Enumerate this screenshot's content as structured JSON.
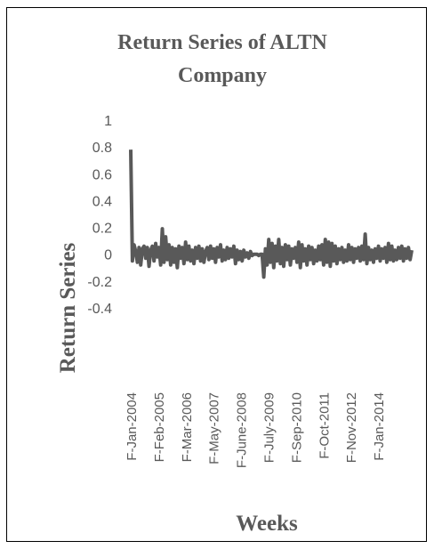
{
  "chart_data": {
    "type": "line",
    "title": "Return Series of ALTN Company",
    "title_lines": [
      "Return Series of ALTN",
      "Company"
    ],
    "xlabel": "Weeks",
    "ylabel": "Return Series",
    "ylim": [
      -0.4,
      1
    ],
    "yticks": [
      "1",
      "0.8",
      "0.6",
      "0.4",
      "0.2",
      "0",
      "-0.2",
      "-0.4"
    ],
    "ytick_values": [
      1,
      0.8,
      0.6,
      0.4,
      0.2,
      0,
      -0.2,
      -0.4
    ],
    "xtick_labels": [
      "F-Jan-2004",
      "F-Feb-2005",
      "F-Mar-2006",
      "F-May-2007",
      "F-June-2008",
      "F-July-2009",
      "F-Sep-2010",
      "F-Oct-2011",
      "F-Nov-2012",
      "F-Jan-2014"
    ],
    "grid": false,
    "legend": "none",
    "series_color": "#595959",
    "series": [
      {
        "values": [
          0.78,
          -0.05,
          0.07,
          0.02,
          -0.06,
          0.05,
          -0.08,
          0.04,
          0.06,
          -0.03,
          0.05,
          -0.09,
          0.03,
          0.06,
          -0.05,
          0.08,
          -0.02,
          0.05,
          -0.08,
          0.19,
          -0.06,
          0.13,
          -0.04,
          0.07,
          -0.08,
          0.05,
          -0.06,
          0.04,
          -0.1,
          0.06,
          -0.03,
          0.05,
          -0.07,
          0.09,
          -0.04,
          0.06,
          -0.05,
          0.03,
          -0.07,
          0.05,
          -0.03,
          0.06,
          -0.05,
          0.04,
          -0.06,
          0.02,
          0.05,
          -0.04,
          0.06,
          -0.03,
          0.04,
          -0.06,
          0.05,
          -0.02,
          0.07,
          -0.05,
          0.03,
          -0.04,
          0.05,
          -0.03,
          0.04,
          -0.02,
          0.06,
          -0.07,
          0.03,
          -0.04,
          0.02,
          -0.05,
          0.03,
          -0.02,
          0.01,
          -0.03,
          0.02,
          -0.01,
          0.0,
          0.0,
          0.0,
          -0.01,
          0.0,
          0.0,
          -0.17,
          0.04,
          -0.08,
          0.11,
          -0.06,
          0.08,
          -0.1,
          0.06,
          -0.05,
          0.11,
          -0.07,
          0.05,
          -0.09,
          0.07,
          -0.04,
          0.06,
          -0.08,
          0.04,
          -0.03,
          0.05,
          -0.06,
          0.09,
          -0.1,
          0.07,
          -0.05,
          0.04,
          -0.08,
          0.06,
          -0.04,
          0.05,
          -0.07,
          0.03,
          -0.05,
          0.06,
          -0.04,
          0.07,
          -0.08,
          0.11,
          -0.06,
          0.09,
          -0.09,
          0.08,
          -0.05,
          0.06,
          -0.07,
          0.04,
          -0.04,
          0.05,
          -0.06,
          0.03,
          -0.05,
          0.07,
          -0.04,
          0.05,
          -0.06,
          0.04,
          -0.03,
          0.05,
          -0.05,
          0.06,
          -0.04,
          0.15,
          -0.07,
          0.05,
          -0.04,
          0.03,
          -0.06,
          0.04,
          -0.03,
          0.06,
          -0.05,
          0.04,
          -0.03,
          0.05,
          -0.06,
          0.08,
          -0.04,
          0.06,
          -0.05,
          0.03,
          -0.04,
          0.05,
          -0.03,
          0.06,
          -0.05,
          0.04,
          -0.03,
          0.05,
          -0.04,
          0.03
        ]
      }
    ]
  }
}
